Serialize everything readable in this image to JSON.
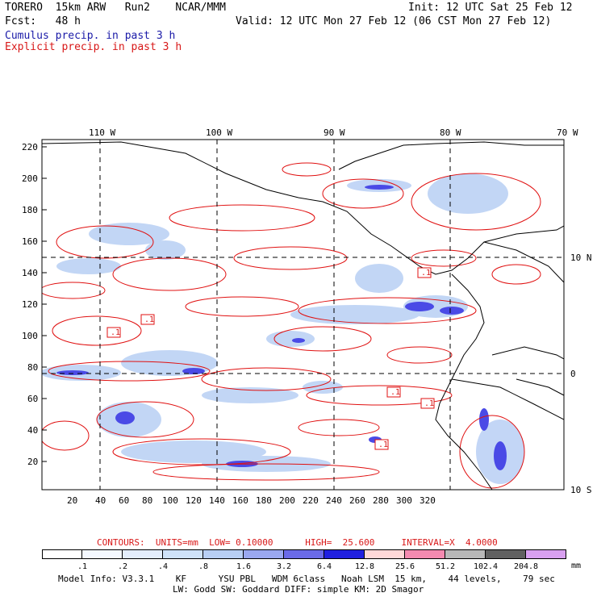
{
  "header": {
    "line1_left": "TORERO  15km ARW   Run2    NCAR/MMM",
    "line1_right": "Init: 12 UTC Sat 25 Feb 12",
    "line2_left": "Fcst:   48 h",
    "line2_right": "Valid: 12 UTC Mon 27 Feb 12 (06 CST Mon 27 Feb 12)",
    "line3": "Cumulus precip. in past 3 h",
    "line4": "Explicit precip. in past 3 h"
  },
  "map": {
    "lon_labels": [
      "110 W",
      "100 W",
      "90 W",
      "80 W",
      "70 W"
    ],
    "lat_labels": [
      "10 N",
      "0",
      "10 S"
    ],
    "y_ticks": [
      "220",
      "200",
      "180",
      "160",
      "140",
      "120",
      "100",
      "80",
      "60",
      "40",
      "20"
    ],
    "x_ticks": [
      "20",
      "40",
      "60",
      "80",
      "100",
      "120",
      "140",
      "160",
      "180",
      "200",
      "220",
      "240",
      "260",
      "280",
      "300",
      "320"
    ],
    "box_labels": [
      ".1",
      ".1",
      ".1",
      ".1",
      ".1",
      ".1"
    ]
  },
  "contour_info": {
    "text": "CONTOURS:  UNITS=mm  LOW= 0.10000      HIGH=  25.600     INTERVAL=X  4.0000"
  },
  "colorbar": {
    "labels": [
      ".1",
      ".2",
      ".4",
      ".8",
      "1.6",
      "3.2",
      "6.4",
      "12.8",
      "25.6",
      "51.2",
      "102.4",
      "204.8"
    ],
    "unit": "mm",
    "colors": [
      "#ffffff",
      "#f4f8ff",
      "#e4eefc",
      "#cfe2f8",
      "#b8cff4",
      "#9aa8f0",
      "#6a6ae8",
      "#2020e0",
      "#ffd8d8",
      "#f48ab0",
      "#b8b8b8",
      "#606060",
      "#d8a0f0"
    ]
  },
  "model_info": {
    "line1": "Model Info: V3.3.1    KF      YSU PBL   WDM 6class   Noah LSM  15 km,    44 levels,    79 sec",
    "line2": "LW: Godd SW: Goddard DIFF: simple KM: 2D Smagor"
  }
}
